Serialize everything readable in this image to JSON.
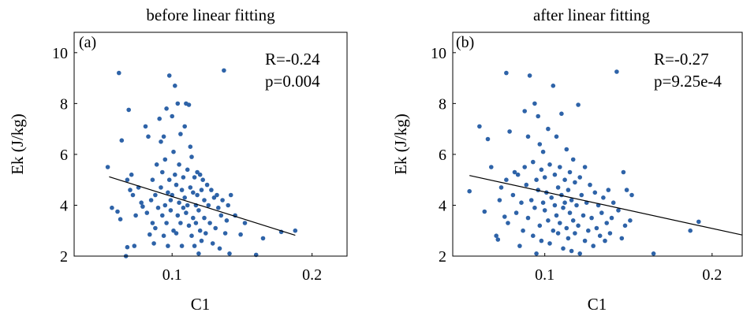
{
  "chart_data": [
    {
      "type": "scatter",
      "title": "before linear fitting",
      "panel_label": "(a)",
      "xlabel": "C1",
      "ylabel": "Ek (J/kg)",
      "xlim": [
        0.03,
        0.225
      ],
      "ylim": [
        2,
        10.8
      ],
      "xticks": [
        0.1,
        0.2
      ],
      "xtick_labels": [
        "0.1",
        "0.2"
      ],
      "yticks": [
        2,
        4,
        6,
        8,
        10
      ],
      "ytick_labels": [
        "2",
        "4",
        "6",
        "8",
        "10"
      ],
      "annotation": [
        "R=-0.24",
        "p=0.004"
      ],
      "point_color": "#2e63a8",
      "fit_line": {
        "x": [
          0.055,
          0.188
        ],
        "y": [
          5.12,
          2.82
        ]
      },
      "points": [
        [
          0.054,
          5.5
        ],
        [
          0.057,
          3.9
        ],
        [
          0.062,
          9.2
        ],
        [
          0.061,
          3.75
        ],
        [
          0.064,
          6.55
        ],
        [
          0.063,
          3.45
        ],
        [
          0.068,
          5.0
        ],
        [
          0.069,
          7.75
        ],
        [
          0.068,
          2.35
        ],
        [
          0.07,
          4.6
        ],
        [
          0.071,
          5.2
        ],
        [
          0.072,
          4.4
        ],
        [
          0.073,
          2.4
        ],
        [
          0.074,
          3.6
        ],
        [
          0.067,
          2.0
        ],
        [
          0.076,
          4.7
        ],
        [
          0.078,
          4.1
        ],
        [
          0.079,
          3.95
        ],
        [
          0.081,
          7.1
        ],
        [
          0.082,
          3.7
        ],
        [
          0.083,
          6.7
        ],
        [
          0.084,
          2.85
        ],
        [
          0.085,
          4.2
        ],
        [
          0.086,
          3.3
        ],
        [
          0.086,
          5.0
        ],
        [
          0.087,
          2.5
        ],
        [
          0.088,
          4.4
        ],
        [
          0.088,
          3.1
        ],
        [
          0.089,
          5.6
        ],
        [
          0.09,
          3.9
        ],
        [
          0.091,
          7.4
        ],
        [
          0.092,
          6.5
        ],
        [
          0.092,
          4.7
        ],
        [
          0.093,
          3.6
        ],
        [
          0.093,
          5.3
        ],
        [
          0.094,
          2.8
        ],
        [
          0.094,
          6.7
        ],
        [
          0.095,
          4.0
        ],
        [
          0.095,
          5.8
        ],
        [
          0.096,
          7.8
        ],
        [
          0.096,
          3.3
        ],
        [
          0.097,
          4.5
        ],
        [
          0.097,
          2.4
        ],
        [
          0.098,
          9.1
        ],
        [
          0.098,
          5.0
        ],
        [
          0.099,
          4.2
        ],
        [
          0.099,
          3.8
        ],
        [
          0.1,
          7.5
        ],
        [
          0.1,
          4.4
        ],
        [
          0.101,
          6.1
        ],
        [
          0.101,
          3.0
        ],
        [
          0.102,
          8.7
        ],
        [
          0.102,
          5.2
        ],
        [
          0.103,
          4.8
        ],
        [
          0.103,
          2.9
        ],
        [
          0.104,
          8.0
        ],
        [
          0.104,
          3.6
        ],
        [
          0.105,
          5.6
        ],
        [
          0.105,
          4.1
        ],
        [
          0.106,
          6.8
        ],
        [
          0.106,
          3.3
        ],
        [
          0.107,
          4.6
        ],
        [
          0.107,
          2.4
        ],
        [
          0.108,
          5.1
        ],
        [
          0.108,
          3.9
        ],
        [
          0.109,
          7.1
        ],
        [
          0.109,
          4.3
        ],
        [
          0.11,
          8.0
        ],
        [
          0.11,
          3.7
        ],
        [
          0.111,
          5.4
        ],
        [
          0.111,
          4.0
        ],
        [
          0.112,
          7.95
        ],
        [
          0.112,
          3.2
        ],
        [
          0.113,
          6.3
        ],
        [
          0.113,
          4.7
        ],
        [
          0.114,
          2.8
        ],
        [
          0.114,
          5.9
        ],
        [
          0.115,
          3.5
        ],
        [
          0.115,
          4.5
        ],
        [
          0.116,
          5.1
        ],
        [
          0.116,
          2.4
        ],
        [
          0.117,
          4.0
        ],
        [
          0.117,
          3.3
        ],
        [
          0.118,
          5.3
        ],
        [
          0.118,
          4.4
        ],
        [
          0.119,
          2.1
        ],
        [
          0.119,
          3.8
        ],
        [
          0.12,
          5.2
        ],
        [
          0.12,
          3.0
        ],
        [
          0.121,
          4.6
        ],
        [
          0.121,
          2.6
        ],
        [
          0.122,
          5.0
        ],
        [
          0.123,
          3.5
        ],
        [
          0.123,
          4.2
        ],
        [
          0.124,
          2.9
        ],
        [
          0.125,
          4.8
        ],
        [
          0.126,
          4.0
        ],
        [
          0.127,
          3.3
        ],
        [
          0.128,
          4.6
        ],
        [
          0.129,
          2.5
        ],
        [
          0.13,
          4.3
        ],
        [
          0.131,
          3.1
        ],
        [
          0.132,
          4.4
        ],
        [
          0.133,
          3.9
        ],
        [
          0.134,
          2.3
        ],
        [
          0.135,
          3.6
        ],
        [
          0.136,
          4.2
        ],
        [
          0.137,
          9.3
        ],
        [
          0.138,
          2.9
        ],
        [
          0.139,
          3.4
        ],
        [
          0.14,
          4.0
        ],
        [
          0.141,
          2.1
        ],
        [
          0.142,
          4.4
        ],
        [
          0.145,
          3.6
        ],
        [
          0.149,
          2.85
        ],
        [
          0.152,
          3.3
        ],
        [
          0.16,
          2.05
        ],
        [
          0.165,
          2.7
        ],
        [
          0.178,
          2.95
        ],
        [
          0.188,
          3.0
        ]
      ]
    },
    {
      "type": "scatter",
      "title": "after linear fitting",
      "panel_label": "(b)",
      "xlabel": "C1",
      "ylabel": "Ek (J/kg)",
      "xlim": [
        0.045,
        0.218
      ],
      "ylim": [
        2,
        10.8
      ],
      "xticks": [
        0.1,
        0.2
      ],
      "xtick_labels": [
        "0.1",
        "0.2"
      ],
      "yticks": [
        2,
        4,
        6,
        8,
        10
      ],
      "ytick_labels": [
        "2",
        "4",
        "6",
        "8",
        "10"
      ],
      "annotation": [
        "R=-0.27",
        "p=9.25e-4"
      ],
      "point_color": "#2e63a8",
      "fit_line": {
        "x": [
          0.055,
          0.218
        ],
        "y": [
          5.17,
          2.83
        ]
      },
      "points": [
        [
          0.055,
          4.55
        ],
        [
          0.061,
          7.1
        ],
        [
          0.064,
          3.75
        ],
        [
          0.066,
          6.6
        ],
        [
          0.068,
          5.5
        ],
        [
          0.071,
          2.8
        ],
        [
          0.072,
          2.65
        ],
        [
          0.073,
          4.2
        ],
        [
          0.074,
          4.7
        ],
        [
          0.076,
          3.55
        ],
        [
          0.077,
          9.2
        ],
        [
          0.077,
          5.0
        ],
        [
          0.078,
          3.3
        ],
        [
          0.079,
          6.9
        ],
        [
          0.081,
          4.4
        ],
        [
          0.082,
          5.3
        ],
        [
          0.083,
          3.7
        ],
        [
          0.084,
          5.2
        ],
        [
          0.085,
          2.4
        ],
        [
          0.086,
          4.1
        ],
        [
          0.087,
          3.0
        ],
        [
          0.088,
          7.7
        ],
        [
          0.088,
          5.5
        ],
        [
          0.089,
          4.8
        ],
        [
          0.09,
          6.7
        ],
        [
          0.09,
          3.5
        ],
        [
          0.091,
          9.1
        ],
        [
          0.092,
          4.2
        ],
        [
          0.093,
          5.7
        ],
        [
          0.093,
          2.8
        ],
        [
          0.094,
          8.0
        ],
        [
          0.094,
          3.9
        ],
        [
          0.095,
          5.0
        ],
        [
          0.095,
          2.1
        ],
        [
          0.096,
          7.5
        ],
        [
          0.096,
          4.6
        ],
        [
          0.097,
          6.4
        ],
        [
          0.097,
          3.2
        ],
        [
          0.098,
          5.4
        ],
        [
          0.098,
          2.6
        ],
        [
          0.099,
          4.1
        ],
        [
          0.099,
          6.1
        ],
        [
          0.1,
          3.8
        ],
        [
          0.1,
          5.1
        ],
        [
          0.101,
          4.5
        ],
        [
          0.102,
          7.0
        ],
        [
          0.102,
          3.4
        ],
        [
          0.103,
          5.6
        ],
        [
          0.103,
          2.5
        ],
        [
          0.104,
          4.3
        ],
        [
          0.105,
          3.0
        ],
        [
          0.105,
          8.7
        ],
        [
          0.106,
          5.2
        ],
        [
          0.106,
          4.0
        ],
        [
          0.107,
          6.7
        ],
        [
          0.107,
          3.6
        ],
        [
          0.108,
          4.7
        ],
        [
          0.108,
          2.9
        ],
        [
          0.109,
          5.5
        ],
        [
          0.109,
          3.3
        ],
        [
          0.11,
          4.4
        ],
        [
          0.11,
          7.6
        ],
        [
          0.111,
          3.9
        ],
        [
          0.111,
          2.3
        ],
        [
          0.112,
          5.0
        ],
        [
          0.112,
          4.1
        ],
        [
          0.113,
          6.2
        ],
        [
          0.113,
          3.1
        ],
        [
          0.114,
          4.6
        ],
        [
          0.114,
          2.7
        ],
        [
          0.115,
          5.3
        ],
        [
          0.115,
          3.7
        ],
        [
          0.116,
          4.2
        ],
        [
          0.116,
          2.2
        ],
        [
          0.117,
          5.8
        ],
        [
          0.117,
          3.4
        ],
        [
          0.118,
          4.9
        ],
        [
          0.118,
          2.9
        ],
        [
          0.119,
          4.0
        ],
        [
          0.12,
          7.95
        ],
        [
          0.12,
          3.2
        ],
        [
          0.121,
          5.1
        ],
        [
          0.121,
          2.1
        ],
        [
          0.122,
          4.4
        ],
        [
          0.123,
          3.6
        ],
        [
          0.124,
          5.5
        ],
        [
          0.124,
          2.6
        ],
        [
          0.125,
          4.1
        ],
        [
          0.126,
          3.0
        ],
        [
          0.127,
          4.8
        ],
        [
          0.128,
          3.5
        ],
        [
          0.129,
          2.4
        ],
        [
          0.13,
          4.5
        ],
        [
          0.131,
          3.1
        ],
        [
          0.132,
          4.0
        ],
        [
          0.133,
          2.8
        ],
        [
          0.134,
          3.7
        ],
        [
          0.135,
          4.3
        ],
        [
          0.136,
          2.6
        ],
        [
          0.137,
          3.3
        ],
        [
          0.138,
          4.6
        ],
        [
          0.139,
          2.9
        ],
        [
          0.14,
          3.5
        ],
        [
          0.141,
          4.1
        ],
        [
          0.143,
          9.25
        ],
        [
          0.144,
          3.8
        ],
        [
          0.146,
          2.7
        ],
        [
          0.147,
          5.3
        ],
        [
          0.148,
          3.2
        ],
        [
          0.149,
          4.6
        ],
        [
          0.151,
          3.4
        ],
        [
          0.152,
          4.4
        ],
        [
          0.165,
          2.1
        ],
        [
          0.187,
          3.0
        ],
        [
          0.192,
          3.35
        ]
      ]
    }
  ]
}
